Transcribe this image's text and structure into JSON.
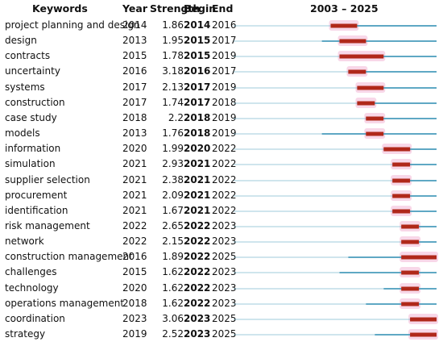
{
  "headers": {
    "keywords": "Keywords",
    "year": "Year",
    "strength": "Strength",
    "begin": "Begin",
    "end": "End",
    "range": "2003 – 2025"
  },
  "colors": {
    "baseline": "#5fa8c4",
    "burst": "#b0281a",
    "highlight": "#f3b6d6"
  },
  "chart_data": {
    "type": "table",
    "title": "",
    "timeline": {
      "start": 2003,
      "end": 2025
    },
    "columns": [
      "Keywords",
      "Year",
      "Strength",
      "Begin",
      "End"
    ],
    "rows": [
      {
        "keyword": "project planning and design",
        "year": "2014",
        "strength": "1.86",
        "begin": "2014",
        "end": "2016"
      },
      {
        "keyword": "design",
        "year": "2013",
        "strength": "1.95",
        "begin": "2015",
        "end": "2017"
      },
      {
        "keyword": "contracts",
        "year": "2015",
        "strength": "1.78",
        "begin": "2015",
        "end": "2019"
      },
      {
        "keyword": "uncertainty",
        "year": "2016",
        "strength": "3.18",
        "begin": "2016",
        "end": "2017"
      },
      {
        "keyword": "systems",
        "year": "2017",
        "strength": "2.13",
        "begin": "2017",
        "end": "2019"
      },
      {
        "keyword": "construction",
        "year": "2017",
        "strength": "1.74",
        "begin": "2017",
        "end": "2018"
      },
      {
        "keyword": "case study",
        "year": "2018",
        "strength": "2.2",
        "begin": "2018",
        "end": "2019"
      },
      {
        "keyword": "models",
        "year": "2013",
        "strength": "1.76",
        "begin": "2018",
        "end": "2019"
      },
      {
        "keyword": "information",
        "year": "2020",
        "strength": "1.99",
        "begin": "2020",
        "end": "2022"
      },
      {
        "keyword": "simulation",
        "year": "2021",
        "strength": "2.93",
        "begin": "2021",
        "end": "2022"
      },
      {
        "keyword": "supplier selection",
        "year": "2021",
        "strength": "2.38",
        "begin": "2021",
        "end": "2022"
      },
      {
        "keyword": "procurement",
        "year": "2021",
        "strength": "2.09",
        "begin": "2021",
        "end": "2022"
      },
      {
        "keyword": "identification",
        "year": "2021",
        "strength": "1.67",
        "begin": "2021",
        "end": "2022"
      },
      {
        "keyword": "risk management",
        "year": "2022",
        "strength": "2.65",
        "begin": "2022",
        "end": "2023"
      },
      {
        "keyword": "network",
        "year": "2022",
        "strength": "2.15",
        "begin": "2022",
        "end": "2023"
      },
      {
        "keyword": "construction management",
        "year": "2016",
        "strength": "1.89",
        "begin": "2022",
        "end": "2025"
      },
      {
        "keyword": "challenges",
        "year": "2015",
        "strength": "1.62",
        "begin": "2022",
        "end": "2023"
      },
      {
        "keyword": "technology",
        "year": "2020",
        "strength": "1.62",
        "begin": "2022",
        "end": "2023"
      },
      {
        "keyword": "operations management",
        "year": "2018",
        "strength": "1.62",
        "begin": "2022",
        "end": "2023"
      },
      {
        "keyword": "coordination",
        "year": "2023",
        "strength": "3.06",
        "begin": "2023",
        "end": "2025"
      },
      {
        "keyword": "strategy",
        "year": "2019",
        "strength": "2.52",
        "begin": "2023",
        "end": "2025"
      }
    ]
  }
}
